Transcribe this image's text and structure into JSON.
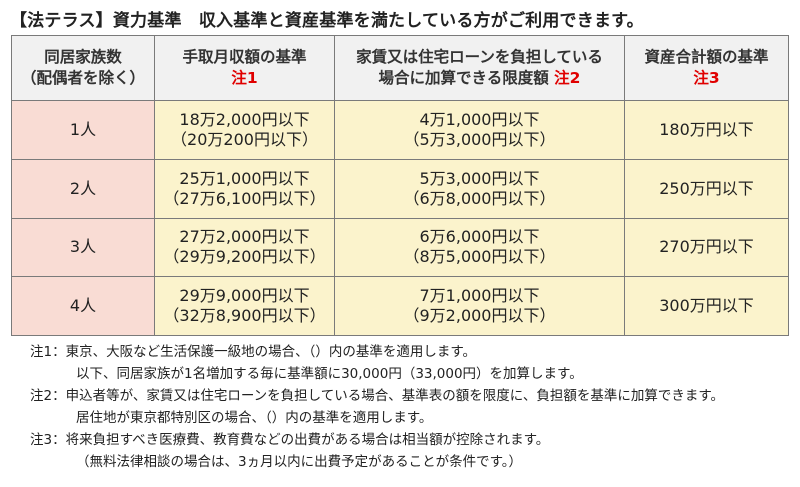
{
  "title": "【法テラス】資力基準　収入基準と資産基準を満たしている方がご利用できます。",
  "headers": {
    "col1_line1": "同居家族数",
    "col1_line2": "（配偶者を除く）",
    "col2_line1": "手取月収額の基準",
    "col2_note": "注1",
    "col3_line1": "家賃又は住宅ローンを負担している",
    "col3_line2": "場合に加算できる限度額",
    "col3_note": "注2",
    "col4_line1": "資産合計額の基準",
    "col4_note": "注3"
  },
  "rows": [
    {
      "persons": "1人",
      "income_1": "18万2,000円以下",
      "income_2": "（20万200円以下）",
      "rent_1": "4万1,000円以下",
      "rent_2": "（5万3,000円以下）",
      "assets": "180万円以下"
    },
    {
      "persons": "2人",
      "income_1": "25万1,000円以下",
      "income_2": "（27万6,100円以下）",
      "rent_1": "5万3,000円以下",
      "rent_2": "（6万8,000円以下）",
      "assets": "250万円以下"
    },
    {
      "persons": "3人",
      "income_1": "27万2,000円以下",
      "income_2": "（29万9,200円以下）",
      "rent_1": "6万6,000円以下",
      "rent_2": "（8万5,000円以下）",
      "assets": "270万円以下"
    },
    {
      "persons": "4人",
      "income_1": "29万9,000円以下",
      "income_2": "（32万8,900円以下）",
      "rent_1": "7万1,000円以下",
      "rent_2": "（9万2,000円以下）",
      "assets": "300万円以下"
    }
  ],
  "notes": {
    "n1_line1": "注1：東京、大阪など生活保護一級地の場合、（）内の基準を適用します。",
    "n1_line2": "以下、同居家族が1名増加する毎に基準額に30,000円（33,000円）を加算します。",
    "n2_line1": "注2：申込者等が、家賃又は住宅ローンを負担している場合、基準表の額を限度に、負担額を基準に加算できます。",
    "n2_line2": "居住地が東京都特別区の場合、（）内の基準を適用します。",
    "n3_line1": "注3：将来負担すべき医療費、教育費などの出費がある場合は相当額が控除されます。",
    "n3_line2": "（無料法律相談の場合は、3ヵ月以内に出費予定があることが条件です。）"
  }
}
